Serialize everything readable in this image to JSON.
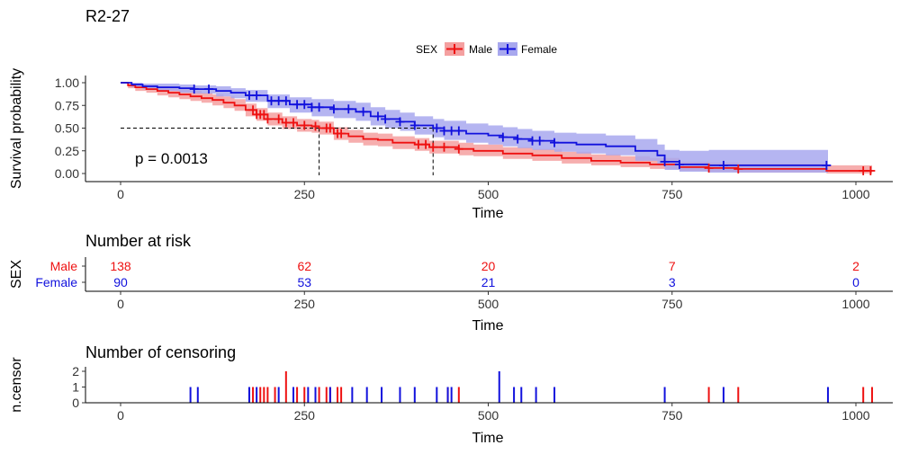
{
  "chart_data": {
    "type": "line",
    "title": "R2-27",
    "legend": {
      "title": "SEX",
      "position": "top",
      "entries": [
        "Male",
        "Female"
      ]
    },
    "colors": {
      "male": "#ee1111",
      "female": "#1111dd",
      "male_band": "#f4a0a0",
      "female_band": "#a8a8ee",
      "axis": "#000000",
      "tick_text": "#333333"
    },
    "pvalue_label": "p = 0.0013",
    "median_survival": {
      "level": 0.5,
      "male": 270,
      "female": 425
    },
    "survival": {
      "xlabel": "Time",
      "ylabel": "Survival probability",
      "xlim": [
        -50,
        1030
      ],
      "ylim": [
        -0.02,
        1.05
      ],
      "x_ticks": [
        0,
        250,
        500,
        750,
        1000
      ],
      "y_ticks": [
        0,
        0.25,
        0.5,
        0.75,
        1.0
      ],
      "y_tick_labels": [
        "0.00",
        "0.25",
        "0.50",
        "0.75",
        "1.00"
      ],
      "series": [
        {
          "name": "Male",
          "x": [
            0,
            10,
            20,
            35,
            50,
            65,
            80,
            95,
            110,
            125,
            140,
            155,
            170,
            185,
            200,
            220,
            240,
            260,
            270,
            290,
            310,
            330,
            350,
            370,
            400,
            420,
            440,
            460,
            480,
            520,
            560,
            600,
            640,
            680,
            720,
            760,
            800,
            840,
            900,
            960,
            1022
          ],
          "y": [
            1.0,
            0.97,
            0.95,
            0.93,
            0.91,
            0.89,
            0.87,
            0.85,
            0.83,
            0.81,
            0.78,
            0.75,
            0.7,
            0.65,
            0.6,
            0.56,
            0.53,
            0.52,
            0.5,
            0.44,
            0.41,
            0.38,
            0.37,
            0.34,
            0.32,
            0.29,
            0.29,
            0.27,
            0.25,
            0.22,
            0.2,
            0.17,
            0.14,
            0.12,
            0.1,
            0.07,
            0.06,
            0.05,
            0.05,
            0.03,
            0.03
          ],
          "lower": [
            1.0,
            0.94,
            0.91,
            0.89,
            0.86,
            0.84,
            0.82,
            0.8,
            0.78,
            0.75,
            0.72,
            0.69,
            0.63,
            0.58,
            0.53,
            0.49,
            0.46,
            0.45,
            0.43,
            0.37,
            0.34,
            0.31,
            0.3,
            0.27,
            0.25,
            0.22,
            0.22,
            0.2,
            0.19,
            0.16,
            0.14,
            0.11,
            0.09,
            0.07,
            0.05,
            0.03,
            0.02,
            0.01,
            0.01,
            0.0,
            0.0
          ],
          "upper": [
            1.0,
            0.99,
            0.98,
            0.97,
            0.96,
            0.94,
            0.93,
            0.91,
            0.89,
            0.87,
            0.85,
            0.82,
            0.77,
            0.72,
            0.67,
            0.63,
            0.6,
            0.59,
            0.57,
            0.51,
            0.48,
            0.45,
            0.44,
            0.41,
            0.39,
            0.36,
            0.36,
            0.34,
            0.32,
            0.29,
            0.27,
            0.24,
            0.21,
            0.19,
            0.17,
            0.13,
            0.12,
            0.11,
            0.11,
            0.09,
            0.09
          ],
          "censor_x": [
            180,
            185,
            190,
            195,
            200,
            215,
            225,
            235,
            250,
            265,
            280,
            285,
            295,
            300,
            405,
            415,
            425,
            440,
            460,
            800,
            840,
            1010,
            1020
          ]
        },
        {
          "name": "Female",
          "x": [
            0,
            15,
            30,
            50,
            80,
            100,
            130,
            150,
            170,
            200,
            230,
            260,
            290,
            320,
            340,
            360,
            380,
            400,
            425,
            440,
            470,
            500,
            520,
            540,
            560,
            590,
            620,
            660,
            700,
            730,
            740,
            760,
            800,
            850,
            900,
            962
          ],
          "y": [
            1.0,
            0.98,
            0.96,
            0.95,
            0.94,
            0.93,
            0.91,
            0.89,
            0.86,
            0.8,
            0.76,
            0.73,
            0.71,
            0.68,
            0.63,
            0.6,
            0.57,
            0.53,
            0.5,
            0.47,
            0.44,
            0.42,
            0.4,
            0.38,
            0.36,
            0.34,
            0.32,
            0.3,
            0.25,
            0.2,
            0.13,
            0.1,
            0.09,
            0.09,
            0.09,
            0.09
          ],
          "lower": [
            1.0,
            0.95,
            0.93,
            0.91,
            0.89,
            0.88,
            0.85,
            0.83,
            0.79,
            0.72,
            0.67,
            0.63,
            0.61,
            0.58,
            0.53,
            0.5,
            0.47,
            0.43,
            0.4,
            0.37,
            0.34,
            0.32,
            0.3,
            0.28,
            0.26,
            0.24,
            0.22,
            0.2,
            0.14,
            0.09,
            0.04,
            0.02,
            0.01,
            0.01,
            0.01,
            0.01
          ],
          "upper": [
            1.0,
            1.0,
            0.99,
            0.99,
            0.98,
            0.97,
            0.96,
            0.94,
            0.92,
            0.87,
            0.84,
            0.82,
            0.8,
            0.78,
            0.73,
            0.7,
            0.67,
            0.63,
            0.6,
            0.58,
            0.55,
            0.53,
            0.51,
            0.49,
            0.47,
            0.45,
            0.44,
            0.42,
            0.38,
            0.32,
            0.26,
            0.25,
            0.26,
            0.26,
            0.26,
            0.26
          ],
          "censor_x": [
            100,
            120,
            175,
            185,
            205,
            215,
            225,
            240,
            250,
            260,
            270,
            290,
            310,
            330,
            350,
            360,
            380,
            400,
            430,
            440,
            450,
            460,
            520,
            540,
            560,
            570,
            590,
            740,
            760,
            820,
            960
          ]
        }
      ]
    },
    "risk_table": {
      "title": "Number at risk",
      "ylabel": "SEX",
      "xlabel": "Time",
      "x_ticks": [
        0,
        250,
        500,
        750,
        1000
      ],
      "rows": [
        {
          "label": "Male",
          "values": [
            "138",
            "62",
            "20",
            "7",
            "2"
          ]
        },
        {
          "label": "Female",
          "values": [
            "90",
            "53",
            "21",
            "3",
            "0"
          ]
        }
      ]
    },
    "censoring": {
      "title": "Number of censoring",
      "ylabel": "n.censor",
      "xlabel": "Time",
      "x_ticks": [
        0,
        250,
        500,
        750,
        1000
      ],
      "y_ticks": [
        0,
        1,
        2
      ],
      "male": [
        [
          175,
          1
        ],
        [
          180,
          1
        ],
        [
          190,
          1
        ],
        [
          195,
          1
        ],
        [
          200,
          1
        ],
        [
          210,
          1
        ],
        [
          225,
          2
        ],
        [
          240,
          1
        ],
        [
          250,
          1
        ],
        [
          270,
          1
        ],
        [
          280,
          1
        ],
        [
          285,
          1
        ],
        [
          295,
          1
        ],
        [
          300,
          1
        ],
        [
          445,
          1
        ],
        [
          460,
          1
        ],
        [
          800,
          1
        ],
        [
          840,
          1
        ],
        [
          1010,
          1
        ],
        [
          1022,
          1
        ]
      ],
      "female": [
        [
          95,
          1
        ],
        [
          105,
          1
        ],
        [
          175,
          1
        ],
        [
          185,
          1
        ],
        [
          215,
          1
        ],
        [
          235,
          1
        ],
        [
          255,
          1
        ],
        [
          265,
          1
        ],
        [
          285,
          1
        ],
        [
          315,
          1
        ],
        [
          335,
          1
        ],
        [
          355,
          1
        ],
        [
          380,
          1
        ],
        [
          400,
          1
        ],
        [
          430,
          1
        ],
        [
          445,
          1
        ],
        [
          450,
          1
        ],
        [
          515,
          2
        ],
        [
          535,
          1
        ],
        [
          545,
          1
        ],
        [
          565,
          1
        ],
        [
          590,
          1
        ],
        [
          740,
          1
        ],
        [
          820,
          1
        ],
        [
          962,
          1
        ]
      ]
    }
  }
}
